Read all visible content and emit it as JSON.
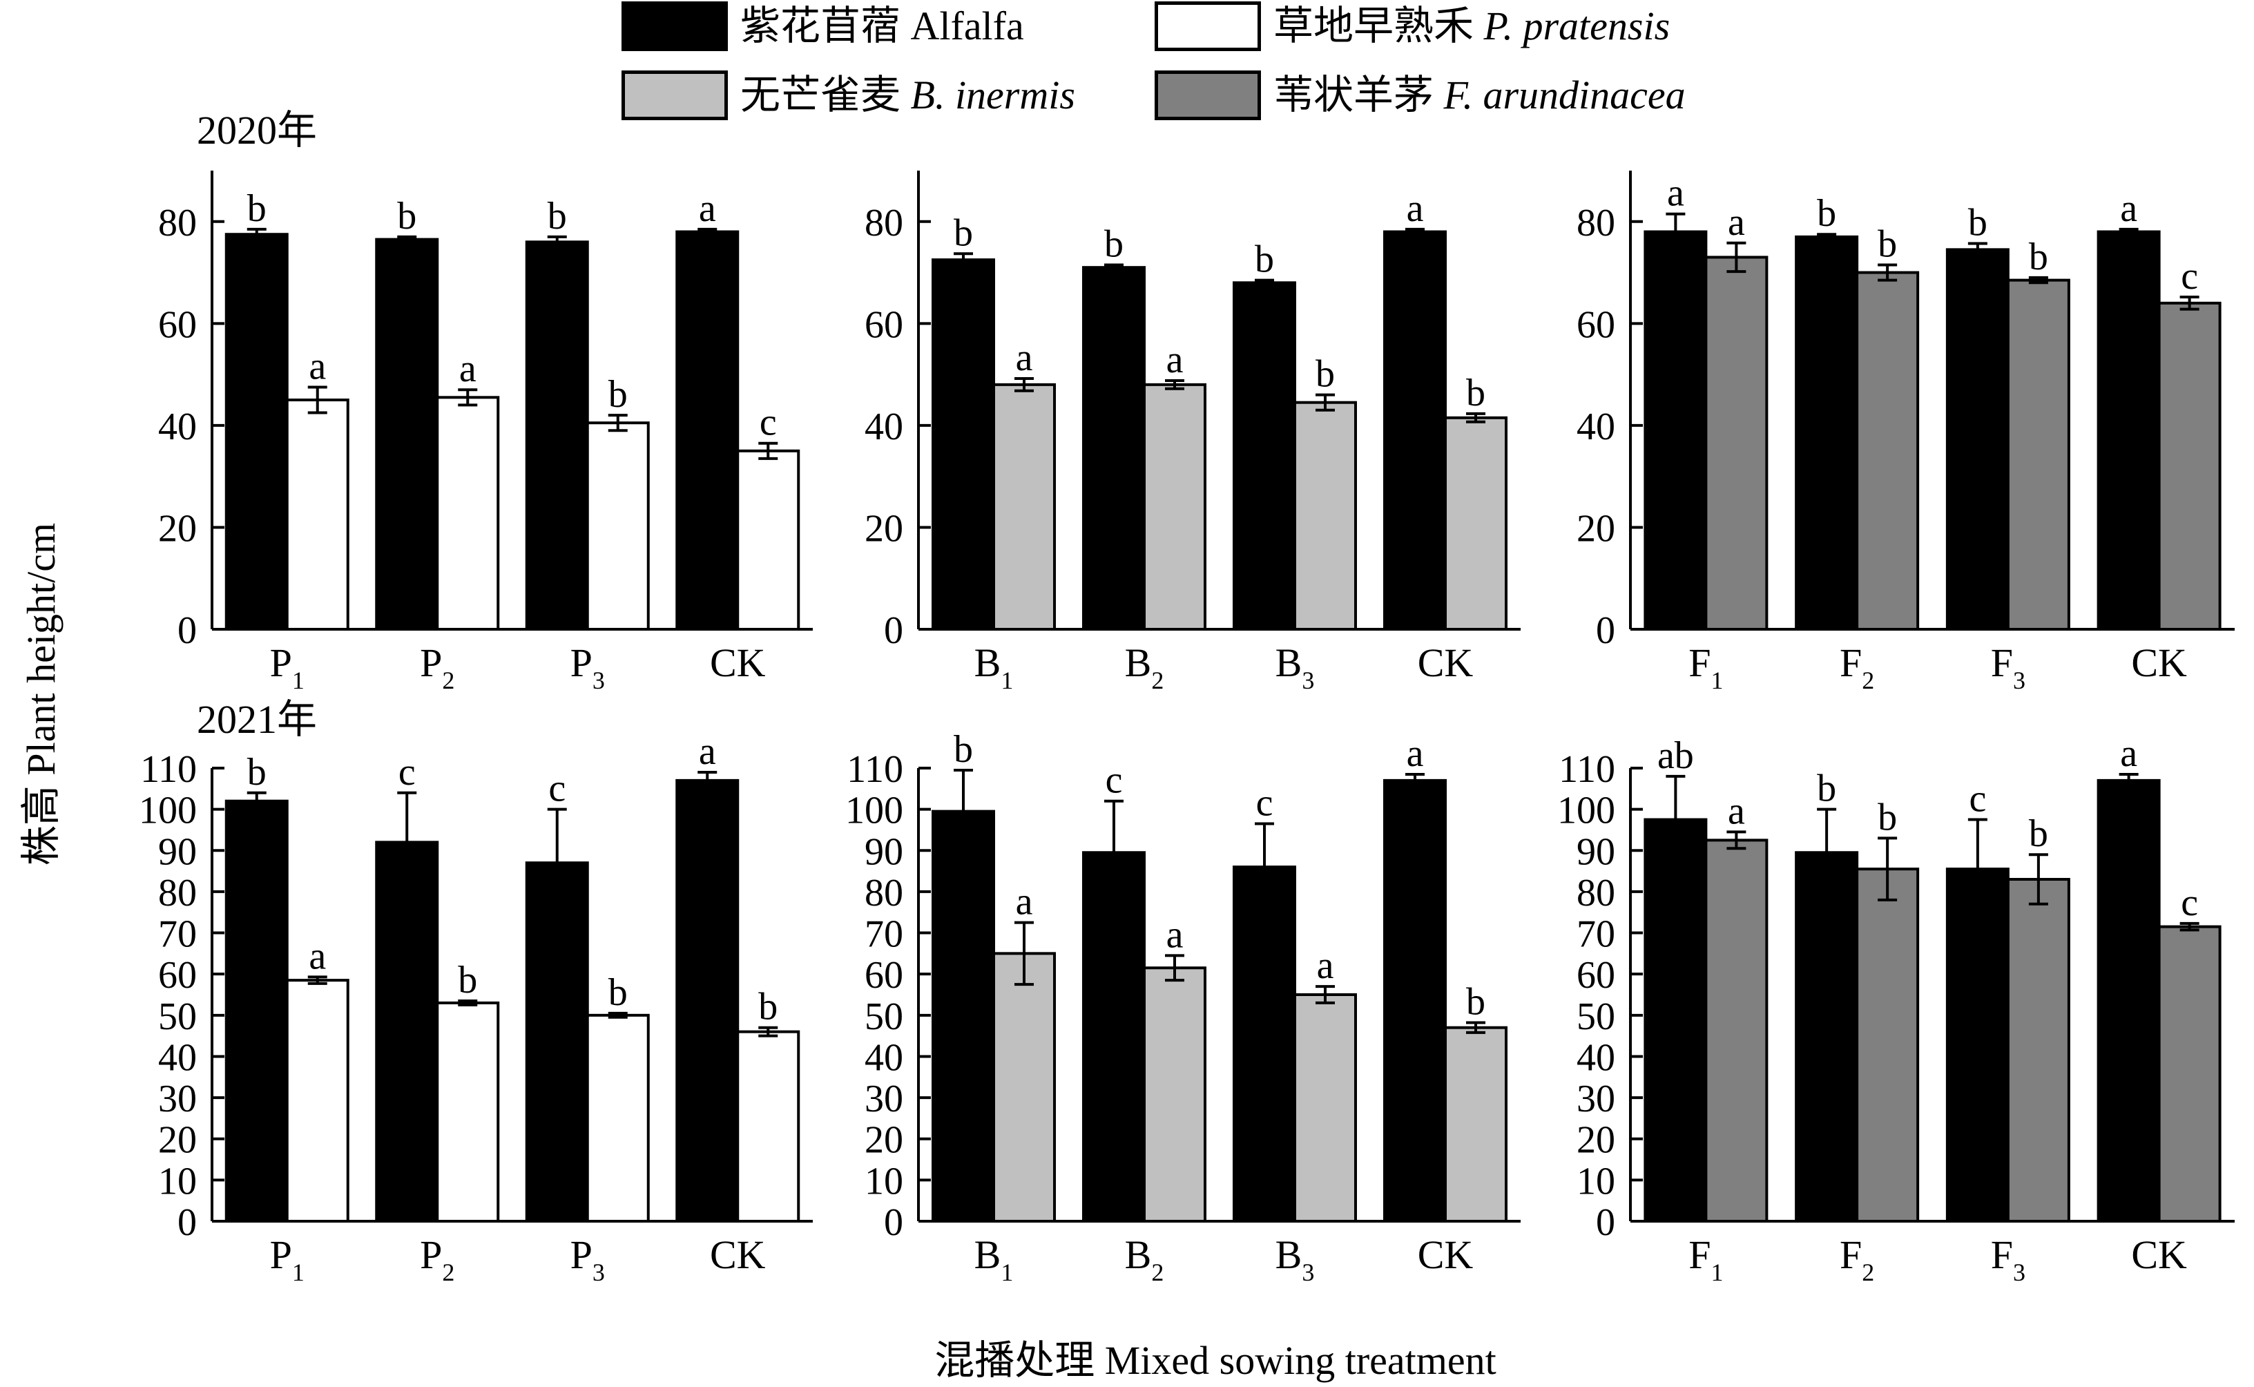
{
  "colors": {
    "alfalfa": "#000000",
    "p_pratensis": "#ffffff",
    "b_inermis": "#c0c0c0",
    "f_arundinacea": "#808080"
  },
  "legend": [
    {
      "label": "紫花苜蓿 Alfalfa",
      "sci": "",
      "color_key": "alfalfa"
    },
    {
      "label": "草地早熟禾 ",
      "sci": "P. pratensis",
      "color_key": "p_pratensis"
    },
    {
      "label": "无芒雀麦 ",
      "sci": "B. inermis",
      "color_key": "b_inermis"
    },
    {
      "label": "苇状羊茅 ",
      "sci": "F. arundinacea",
      "color_key": "f_arundinacea"
    }
  ],
  "years": [
    "2020年",
    "2021年"
  ],
  "ylabel": "株高 Plant height/cm",
  "xlabel": "混播处理 Mixed sowing treatment",
  "chart_data": [
    {
      "type": "bar",
      "year": "2020年",
      "ylim": [
        0,
        90
      ],
      "yticks": [
        0,
        20,
        40,
        60,
        80
      ],
      "categories": [
        {
          "main": "P",
          "sub": "1"
        },
        {
          "main": "P",
          "sub": "2"
        },
        {
          "main": "P",
          "sub": "3"
        },
        {
          "main": "CK",
          "sub": ""
        }
      ],
      "series": [
        {
          "color_key": "alfalfa",
          "values": [
            77.5,
            76.5,
            76,
            78
          ],
          "errors": [
            1,
            0.5,
            1,
            0.5
          ],
          "letters": [
            "b",
            "b",
            "b",
            "a"
          ]
        },
        {
          "color_key": "p_pratensis",
          "values": [
            45,
            45.5,
            40.5,
            35
          ],
          "errors": [
            2.5,
            1.5,
            1.5,
            1.5
          ],
          "letters": [
            "a",
            "a",
            "b",
            "c"
          ]
        }
      ]
    },
    {
      "type": "bar",
      "year": "2020年",
      "ylim": [
        0,
        90
      ],
      "yticks": [
        0,
        20,
        40,
        60,
        80
      ],
      "categories": [
        {
          "main": "B",
          "sub": "1"
        },
        {
          "main": "B",
          "sub": "2"
        },
        {
          "main": "B",
          "sub": "3"
        },
        {
          "main": "CK",
          "sub": ""
        }
      ],
      "series": [
        {
          "color_key": "alfalfa",
          "values": [
            72.5,
            71,
            68,
            78
          ],
          "errors": [
            1.2,
            0.5,
            0.5,
            0.5
          ],
          "letters": [
            "b",
            "b",
            "b",
            "a"
          ]
        },
        {
          "color_key": "b_inermis",
          "values": [
            48,
            48,
            44.5,
            41.5
          ],
          "errors": [
            1.2,
            0.8,
            1.5,
            0.8
          ],
          "letters": [
            "a",
            "a",
            "b",
            "b"
          ]
        }
      ]
    },
    {
      "type": "bar",
      "year": "2020年",
      "ylim": [
        0,
        90
      ],
      "yticks": [
        0,
        20,
        40,
        60,
        80
      ],
      "categories": [
        {
          "main": "F",
          "sub": "1"
        },
        {
          "main": "F",
          "sub": "2"
        },
        {
          "main": "F",
          "sub": "3"
        },
        {
          "main": "CK",
          "sub": ""
        }
      ],
      "series": [
        {
          "color_key": "alfalfa",
          "values": [
            78,
            77,
            74.5,
            78
          ],
          "errors": [
            3.5,
            0.5,
            1.2,
            0.5
          ],
          "letters": [
            "a",
            "b",
            "b",
            "a"
          ]
        },
        {
          "color_key": "f_arundinacea",
          "values": [
            73,
            70,
            68.5,
            64
          ],
          "errors": [
            2.8,
            1.5,
            0.5,
            1.2
          ],
          "letters": [
            "a",
            "b",
            "b",
            "c"
          ]
        }
      ]
    },
    {
      "type": "bar",
      "year": "2021年",
      "ylim": [
        0,
        110
      ],
      "yticks": [
        0,
        10,
        20,
        30,
        40,
        50,
        60,
        70,
        80,
        90,
        100,
        110
      ],
      "categories": [
        {
          "main": "P",
          "sub": "1"
        },
        {
          "main": "P",
          "sub": "2"
        },
        {
          "main": "P",
          "sub": "3"
        },
        {
          "main": "CK",
          "sub": ""
        }
      ],
      "series": [
        {
          "color_key": "alfalfa",
          "values": [
            102,
            92,
            87,
            107
          ],
          "errors": [
            2,
            12,
            13,
            2
          ],
          "letters": [
            "b",
            "c",
            "c",
            "a"
          ]
        },
        {
          "color_key": "p_pratensis",
          "values": [
            58.5,
            53,
            50,
            46
          ],
          "errors": [
            0.8,
            0.5,
            0.5,
            1
          ],
          "letters": [
            "a",
            "b",
            "b",
            "b"
          ]
        }
      ]
    },
    {
      "type": "bar",
      "year": "2021年",
      "ylim": [
        0,
        110
      ],
      "yticks": [
        0,
        10,
        20,
        30,
        40,
        50,
        60,
        70,
        80,
        90,
        100,
        110
      ],
      "categories": [
        {
          "main": "B",
          "sub": "1"
        },
        {
          "main": "B",
          "sub": "2"
        },
        {
          "main": "B",
          "sub": "3"
        },
        {
          "main": "CK",
          "sub": ""
        }
      ],
      "series": [
        {
          "color_key": "alfalfa",
          "values": [
            99.5,
            89.5,
            86,
            107
          ],
          "errors": [
            10,
            12.5,
            10.5,
            1.5
          ],
          "letters": [
            "b",
            "c",
            "c",
            "a"
          ]
        },
        {
          "color_key": "b_inermis",
          "values": [
            65,
            61.5,
            55,
            47
          ],
          "errors": [
            7.5,
            3,
            2,
            1.2
          ],
          "letters": [
            "a",
            "a",
            "a",
            "b"
          ]
        }
      ]
    },
    {
      "type": "bar",
      "year": "2021年",
      "ylim": [
        0,
        110
      ],
      "yticks": [
        0,
        10,
        20,
        30,
        40,
        50,
        60,
        70,
        80,
        90,
        100,
        110
      ],
      "categories": [
        {
          "main": "F",
          "sub": "1"
        },
        {
          "main": "F",
          "sub": "2"
        },
        {
          "main": "F",
          "sub": "3"
        },
        {
          "main": "CK",
          "sub": ""
        }
      ],
      "series": [
        {
          "color_key": "alfalfa",
          "values": [
            97.5,
            89.5,
            85.5,
            107
          ],
          "errors": [
            10.5,
            10.5,
            12,
            1.5
          ],
          "letters": [
            "ab",
            "b",
            "c",
            "a"
          ]
        },
        {
          "color_key": "f_arundinacea",
          "values": [
            92.5,
            85.5,
            83,
            71.5
          ],
          "errors": [
            2,
            7.5,
            6,
            0.8
          ],
          "letters": [
            "a",
            "b",
            "b",
            "c"
          ]
        }
      ]
    }
  ]
}
